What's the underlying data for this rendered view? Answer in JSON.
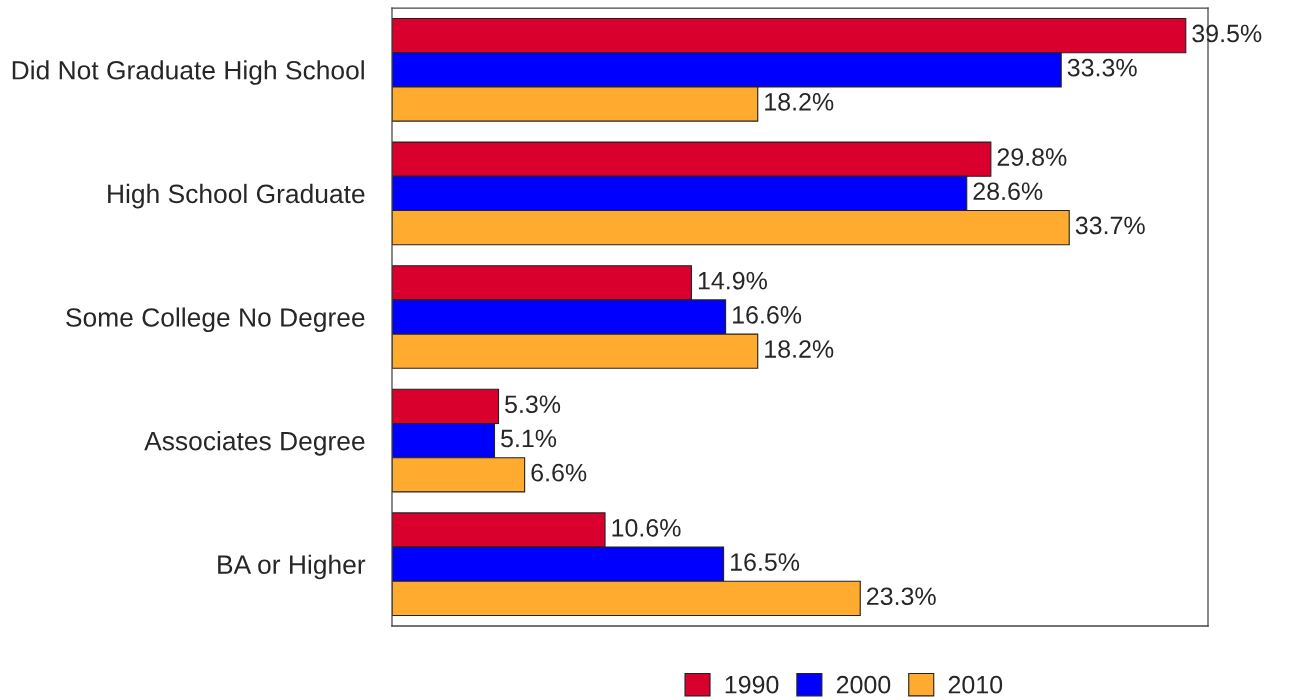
{
  "chart_data": {
    "type": "bar",
    "orientation": "horizontal",
    "categories": [
      "Did Not Graduate High School",
      "High School Graduate",
      "Some College No Degree",
      "Associates Degree",
      "BA or Higher"
    ],
    "series": [
      {
        "name": "1990",
        "color": "#d9002e",
        "values": [
          39.5,
          29.8,
          14.9,
          5.3,
          10.6
        ],
        "value_labels": [
          "39.5%",
          "29.8%",
          "14.9%",
          "5.3%",
          "10.6%"
        ]
      },
      {
        "name": "2000",
        "color": "#0000ff",
        "values": [
          33.3,
          28.6,
          16.6,
          5.1,
          16.5
        ],
        "value_labels": [
          "33.3%",
          "28.6%",
          "16.6%",
          "5.1%",
          "16.5%"
        ]
      },
      {
        "name": "2010",
        "color": "#ffab2f",
        "values": [
          18.2,
          33.7,
          18.2,
          6.6,
          23.3
        ],
        "value_labels": [
          "18.2%",
          "33.7%",
          "18.2%",
          "6.6%",
          "23.3%"
        ]
      }
    ],
    "legend": "bottom",
    "grid": false,
    "tick_labels": "y"
  }
}
